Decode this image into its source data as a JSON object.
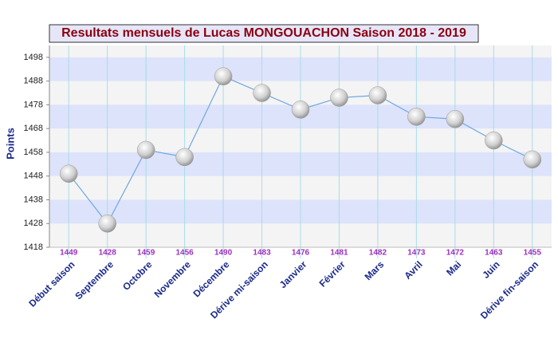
{
  "chart_data": {
    "type": "line",
    "title": "Resultats mensuels de Lucas MONGOUACHON Saison 2018 - 2019",
    "y_label": "Points",
    "categories": [
      "Début saison",
      "Septembre",
      "Octobre",
      "Novembre",
      "Décembre",
      "Dérive mi-saison",
      "Janvier",
      "Février",
      "Mars",
      "Avril",
      "Mai",
      "Juin",
      "Dérive fin-saison"
    ],
    "values": [
      1449,
      1428,
      1459,
      1456,
      1490,
      1483,
      1476,
      1481,
      1482,
      1473,
      1472,
      1463,
      1455
    ],
    "color": "#6fa8e0",
    "ylim": [
      1418,
      1503
    ],
    "yticks": [
      1418,
      1428,
      1438,
      1448,
      1458,
      1468,
      1478,
      1488,
      1498
    ],
    "grid": true
  }
}
